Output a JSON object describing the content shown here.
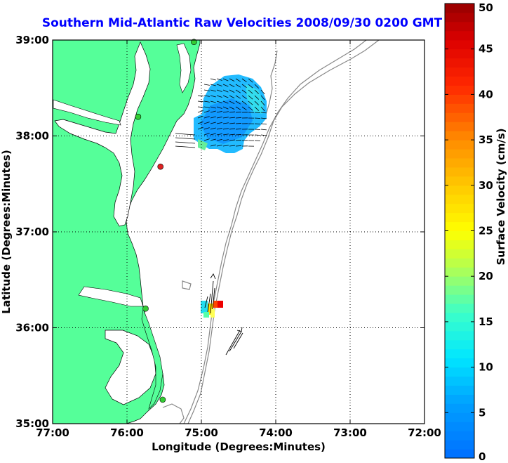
{
  "chart_data": {
    "type": "heatmap",
    "title": "Southern Mid-Atlantic Raw Velocities 2008/09/30 0200 GMT",
    "xlabel": "Longitude (Degrees:Minutes)",
    "ylabel": "Latitude (Degrees:Minutes)",
    "x_ticks": [
      "77:00",
      "76:00",
      "75:00",
      "74:00",
      "73:00",
      "72:00"
    ],
    "y_ticks": [
      "39:00",
      "38:00",
      "37:00",
      "36:00",
      "35:00"
    ],
    "xlim": [
      -77,
      -72
    ],
    "ylim": [
      35,
      39
    ],
    "grid": true,
    "colorbar": {
      "label": "Surface Velocity (cm/s)",
      "ticks": [
        "0",
        "5",
        "10",
        "15",
        "20",
        "25",
        "30",
        "35",
        "40",
        "45",
        "50"
      ],
      "range": [
        0,
        50
      ]
    },
    "colors": {
      "title": "#0000ff",
      "land": "#55ff99",
      "bathymetry": "#888888",
      "grid": "#000000"
    },
    "stations": [
      {
        "lon": -75.1,
        "lat": 38.98,
        "color": "#33cc33"
      },
      {
        "lon": -75.85,
        "lat": 38.2,
        "color": "#33cc33"
      },
      {
        "lon": -75.55,
        "lat": 37.68,
        "color": "#dd2222"
      },
      {
        "lon": -75.75,
        "lat": 36.2,
        "color": "#33cc33"
      },
      {
        "lon": -75.52,
        "lat": 35.25,
        "color": "#33cc33"
      }
    ]
  }
}
